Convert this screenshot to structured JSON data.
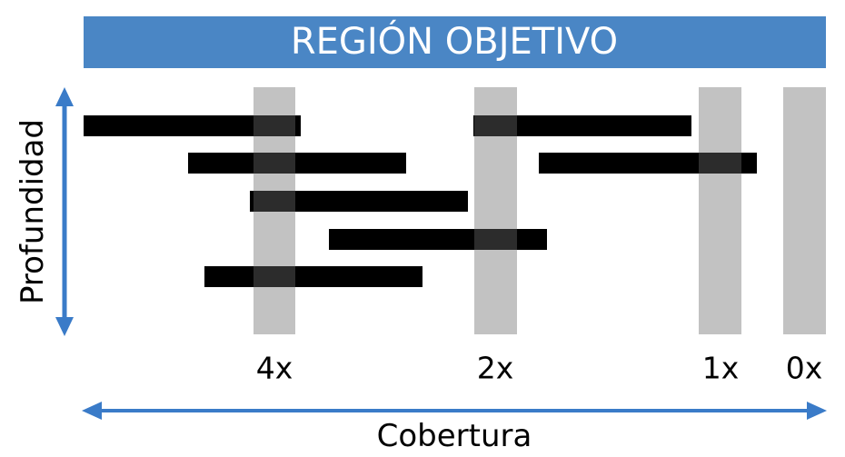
{
  "title": "REGIÓN OBJETIVO",
  "y_axis_label": "Profundidad",
  "x_axis_label": "Cobertura",
  "colors": {
    "banner": "#4a86c5",
    "axis_arrow": "#3a7bc8",
    "column": "#c2c2c2",
    "read": "#000000",
    "read_overlap": "#2c2c2c"
  },
  "coverage_columns": [
    {
      "label": "4x"
    },
    {
      "label": "2x"
    },
    {
      "label": "1x"
    },
    {
      "label": "0x"
    }
  ],
  "read_count": 7
}
